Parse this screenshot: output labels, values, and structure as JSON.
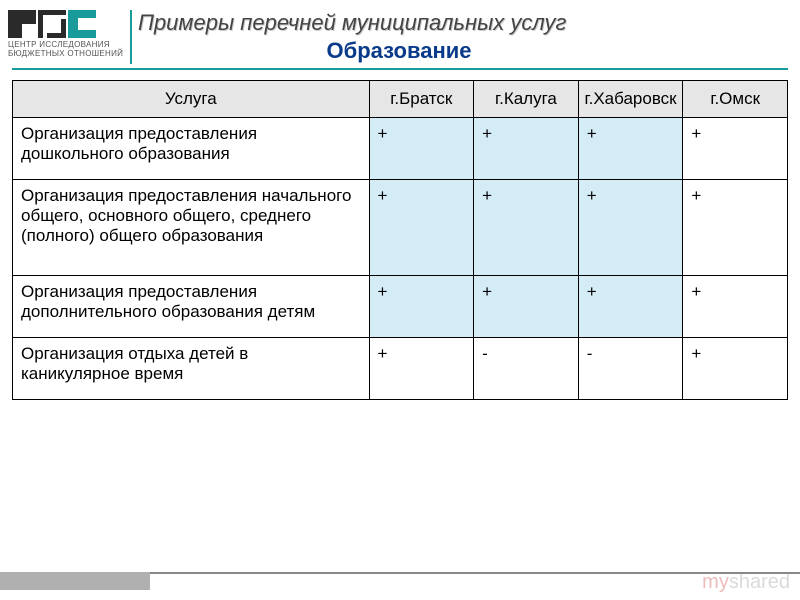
{
  "logo": {
    "line1": "ЦЕНТР ИССЛЕДОВАНИЯ",
    "line2": "БЮДЖЕТНЫХ ОТНОШЕНИЙ"
  },
  "title": {
    "line1": "Примеры перечней муниципальных услуг",
    "line2": "Образование"
  },
  "table": {
    "headers": {
      "service": "Услуга",
      "c1": "г.Братск",
      "c2": "г.Калуга",
      "c3": "г.Хабаровск",
      "c4": "г.Омск"
    },
    "rows": [
      {
        "service": "Организация предоставления дошкольного образования",
        "v1": "+",
        "v2": "+",
        "v3": "+",
        "v4": "+",
        "h1": true,
        "h2": true,
        "h3": true,
        "h4": false
      },
      {
        "service": "Организация предоставления начального общего, основного общего, среднего (полного) общего образования",
        "v1": "+",
        "v2": "+",
        "v3": "+",
        "v4": "+",
        "h1": true,
        "h2": true,
        "h3": true,
        "h4": false
      },
      {
        "service": "Организация предоставления дополнительного образования детям",
        "v1": "+",
        "v2": "+",
        "v3": "+",
        "v4": "+",
        "h1": true,
        "h2": true,
        "h3": true,
        "h4": false
      },
      {
        "service": "Организация отдыха детей в каникулярное время",
        "v1": "+",
        "v2": "-",
        "v3": "-",
        "v4": "+",
        "h1": false,
        "h2": false,
        "h3": false,
        "h4": false
      }
    ]
  },
  "watermark": {
    "part1": "my",
    "part2": "shared"
  },
  "colors": {
    "teal": "#1a9b9b",
    "header_bg": "#e6e6e6",
    "highlight_bg": "#d4ecf6",
    "title_blue": "#0a3a8a"
  }
}
